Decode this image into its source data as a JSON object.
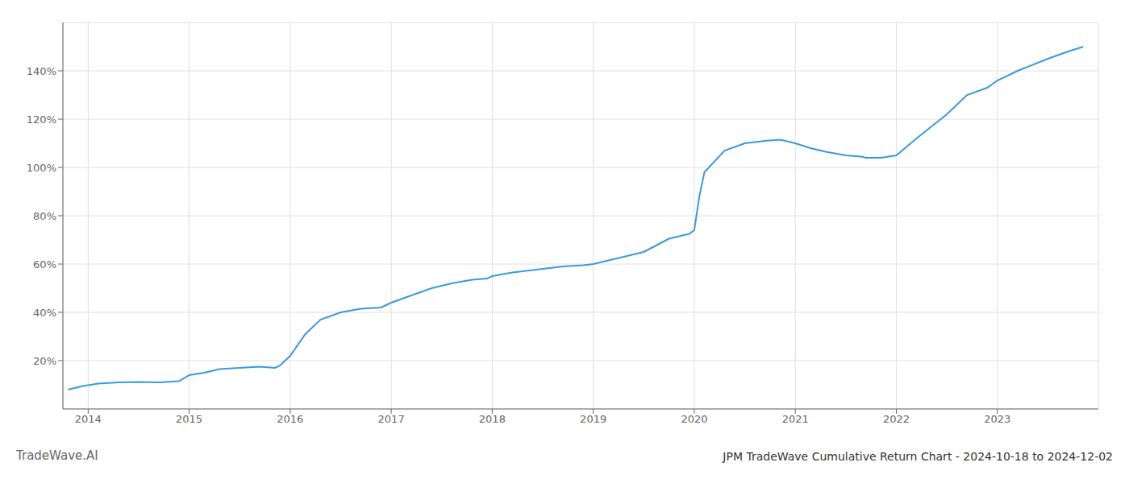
{
  "chart_data": {
    "type": "line",
    "title": "JPM TradeWave Cumulative Return Chart - 2024-10-18 to 2024-12-02",
    "annotations": [
      "TradeWave.AI"
    ],
    "x": [
      2013.8,
      2013.95,
      2014.1,
      2014.3,
      2014.5,
      2014.7,
      2014.9,
      2015.0,
      2015.15,
      2015.3,
      2015.5,
      2015.7,
      2015.85,
      2015.9,
      2016.0,
      2016.15,
      2016.3,
      2016.5,
      2016.7,
      2016.9,
      2017.0,
      2017.2,
      2017.4,
      2017.6,
      2017.8,
      2017.95,
      2018.0,
      2018.2,
      2018.5,
      2018.7,
      2018.9,
      2019.0,
      2019.2,
      2019.5,
      2019.75,
      2019.9,
      2019.95,
      2020.0,
      2020.05,
      2020.1,
      2020.3,
      2020.5,
      2020.7,
      2020.85,
      2020.9,
      2021.0,
      2021.15,
      2021.3,
      2021.5,
      2021.65,
      2021.7,
      2021.85,
      2022.0,
      2022.2,
      2022.5,
      2022.7,
      2022.9,
      2023.0,
      2023.2,
      2023.5,
      2023.7,
      2023.85
    ],
    "values": [
      8.0,
      9.5,
      10.5,
      11.0,
      11.2,
      11.0,
      11.5,
      14.0,
      15.0,
      16.5,
      17.0,
      17.5,
      17.0,
      18.0,
      22.0,
      31.0,
      37.0,
      40.0,
      41.5,
      42.0,
      44.0,
      47.0,
      50.0,
      52.0,
      53.5,
      54.0,
      55.0,
      56.5,
      58.0,
      59.0,
      59.5,
      60.0,
      62.0,
      65.0,
      70.5,
      72.0,
      72.5,
      74.0,
      88.0,
      98.0,
      107.0,
      110.0,
      111.0,
      111.5,
      111.0,
      110.0,
      108.0,
      106.5,
      105.0,
      104.5,
      104.0,
      104.0,
      105.0,
      112.0,
      122.0,
      130.0,
      133.0,
      136.0,
      140.0,
      145.0,
      148.0,
      150.0
    ],
    "color": "#3a9ad9",
    "xlim": [
      2013.75,
      2024.0
    ],
    "xticks": [
      2014,
      2015,
      2016,
      2017,
      2018,
      2019,
      2020,
      2021,
      2022,
      2023
    ],
    "ylim": [
      0,
      160
    ],
    "yticks": [
      {
        "value": 20,
        "label": "20%"
      },
      {
        "value": 40,
        "label": "40%"
      },
      {
        "value": 60,
        "label": "60%"
      },
      {
        "value": 80,
        "label": "80%"
      },
      {
        "value": 100,
        "label": "100%"
      },
      {
        "value": 120,
        "label": "120%"
      },
      {
        "value": 140,
        "label": "140%"
      }
    ],
    "grid": true
  }
}
